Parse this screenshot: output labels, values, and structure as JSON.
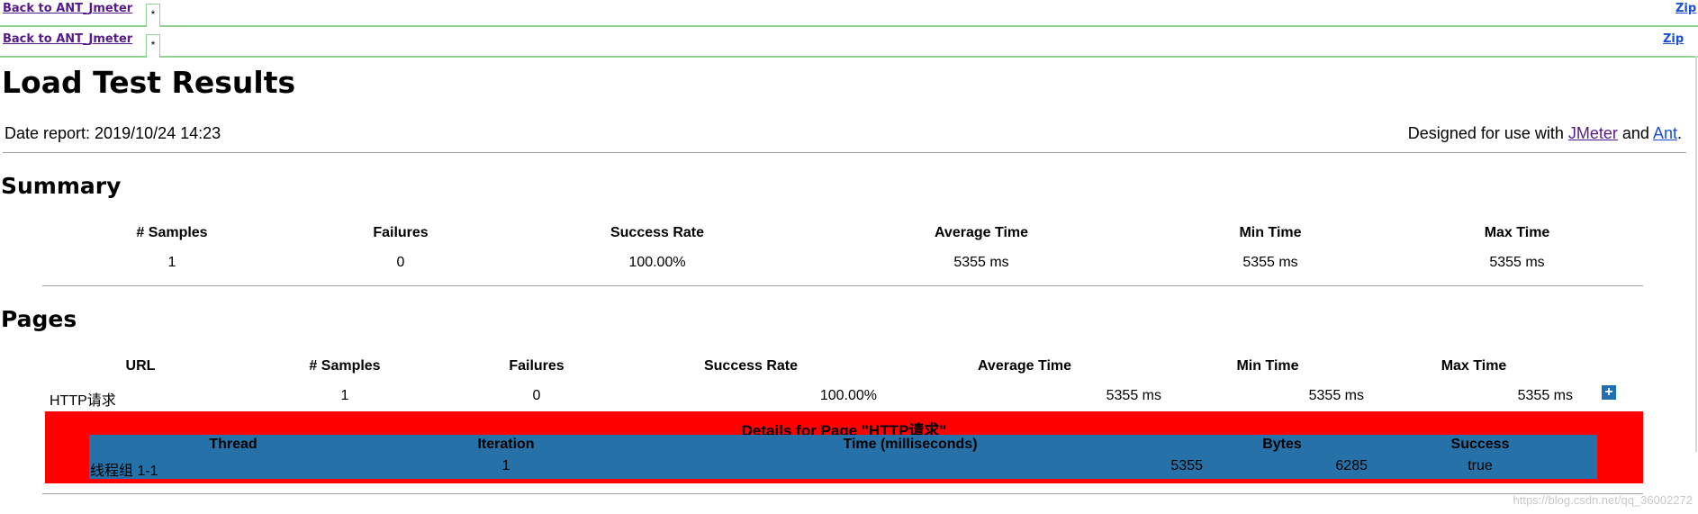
{
  "nav": {
    "back_label": "Back to ANT_Jmeter",
    "tab_label": "*",
    "zip_label": "Zip"
  },
  "header": {
    "title": "Load Test Results",
    "date_report": "Date report: 2019/10/24 14:23",
    "designed_prefix": "Designed for use with ",
    "jmeter_link": "JMeter",
    "and_text": " and ",
    "ant_link": "Ant",
    "period": "."
  },
  "summary": {
    "heading": "Summary",
    "headers": [
      "# Samples",
      "Failures",
      "Success Rate",
      "Average Time",
      "Min Time",
      "Max Time"
    ],
    "row": [
      "1",
      "0",
      "100.00%",
      "5355 ms",
      "5355 ms",
      "5355 ms"
    ]
  },
  "pages": {
    "heading": "Pages",
    "headers": [
      "URL",
      "# Samples",
      "Failures",
      "Success Rate",
      "Average Time",
      "Min Time",
      "Max Time"
    ],
    "row": [
      "HTTP请求",
      "1",
      "0",
      "100.00%",
      "5355 ms",
      "5355 ms",
      "5355 ms"
    ],
    "expand_icon": "+"
  },
  "details": {
    "title": "Details for Page \"HTTP请求\"",
    "headers": [
      "Thread",
      "Iteration",
      "Time (milliseconds)",
      "Bytes",
      "Success"
    ],
    "row": [
      "线程组 1-1",
      "1",
      "5355",
      "6285",
      "true"
    ]
  },
  "watermark": "https://blog.csdn.net/qq_36002272",
  "colors": {
    "details_bg": "#ff0000",
    "inner_table_bg": "#2672a8",
    "frame_border": "#90d290",
    "link_visited": "#551a8b",
    "link": "#1a4fd6"
  }
}
